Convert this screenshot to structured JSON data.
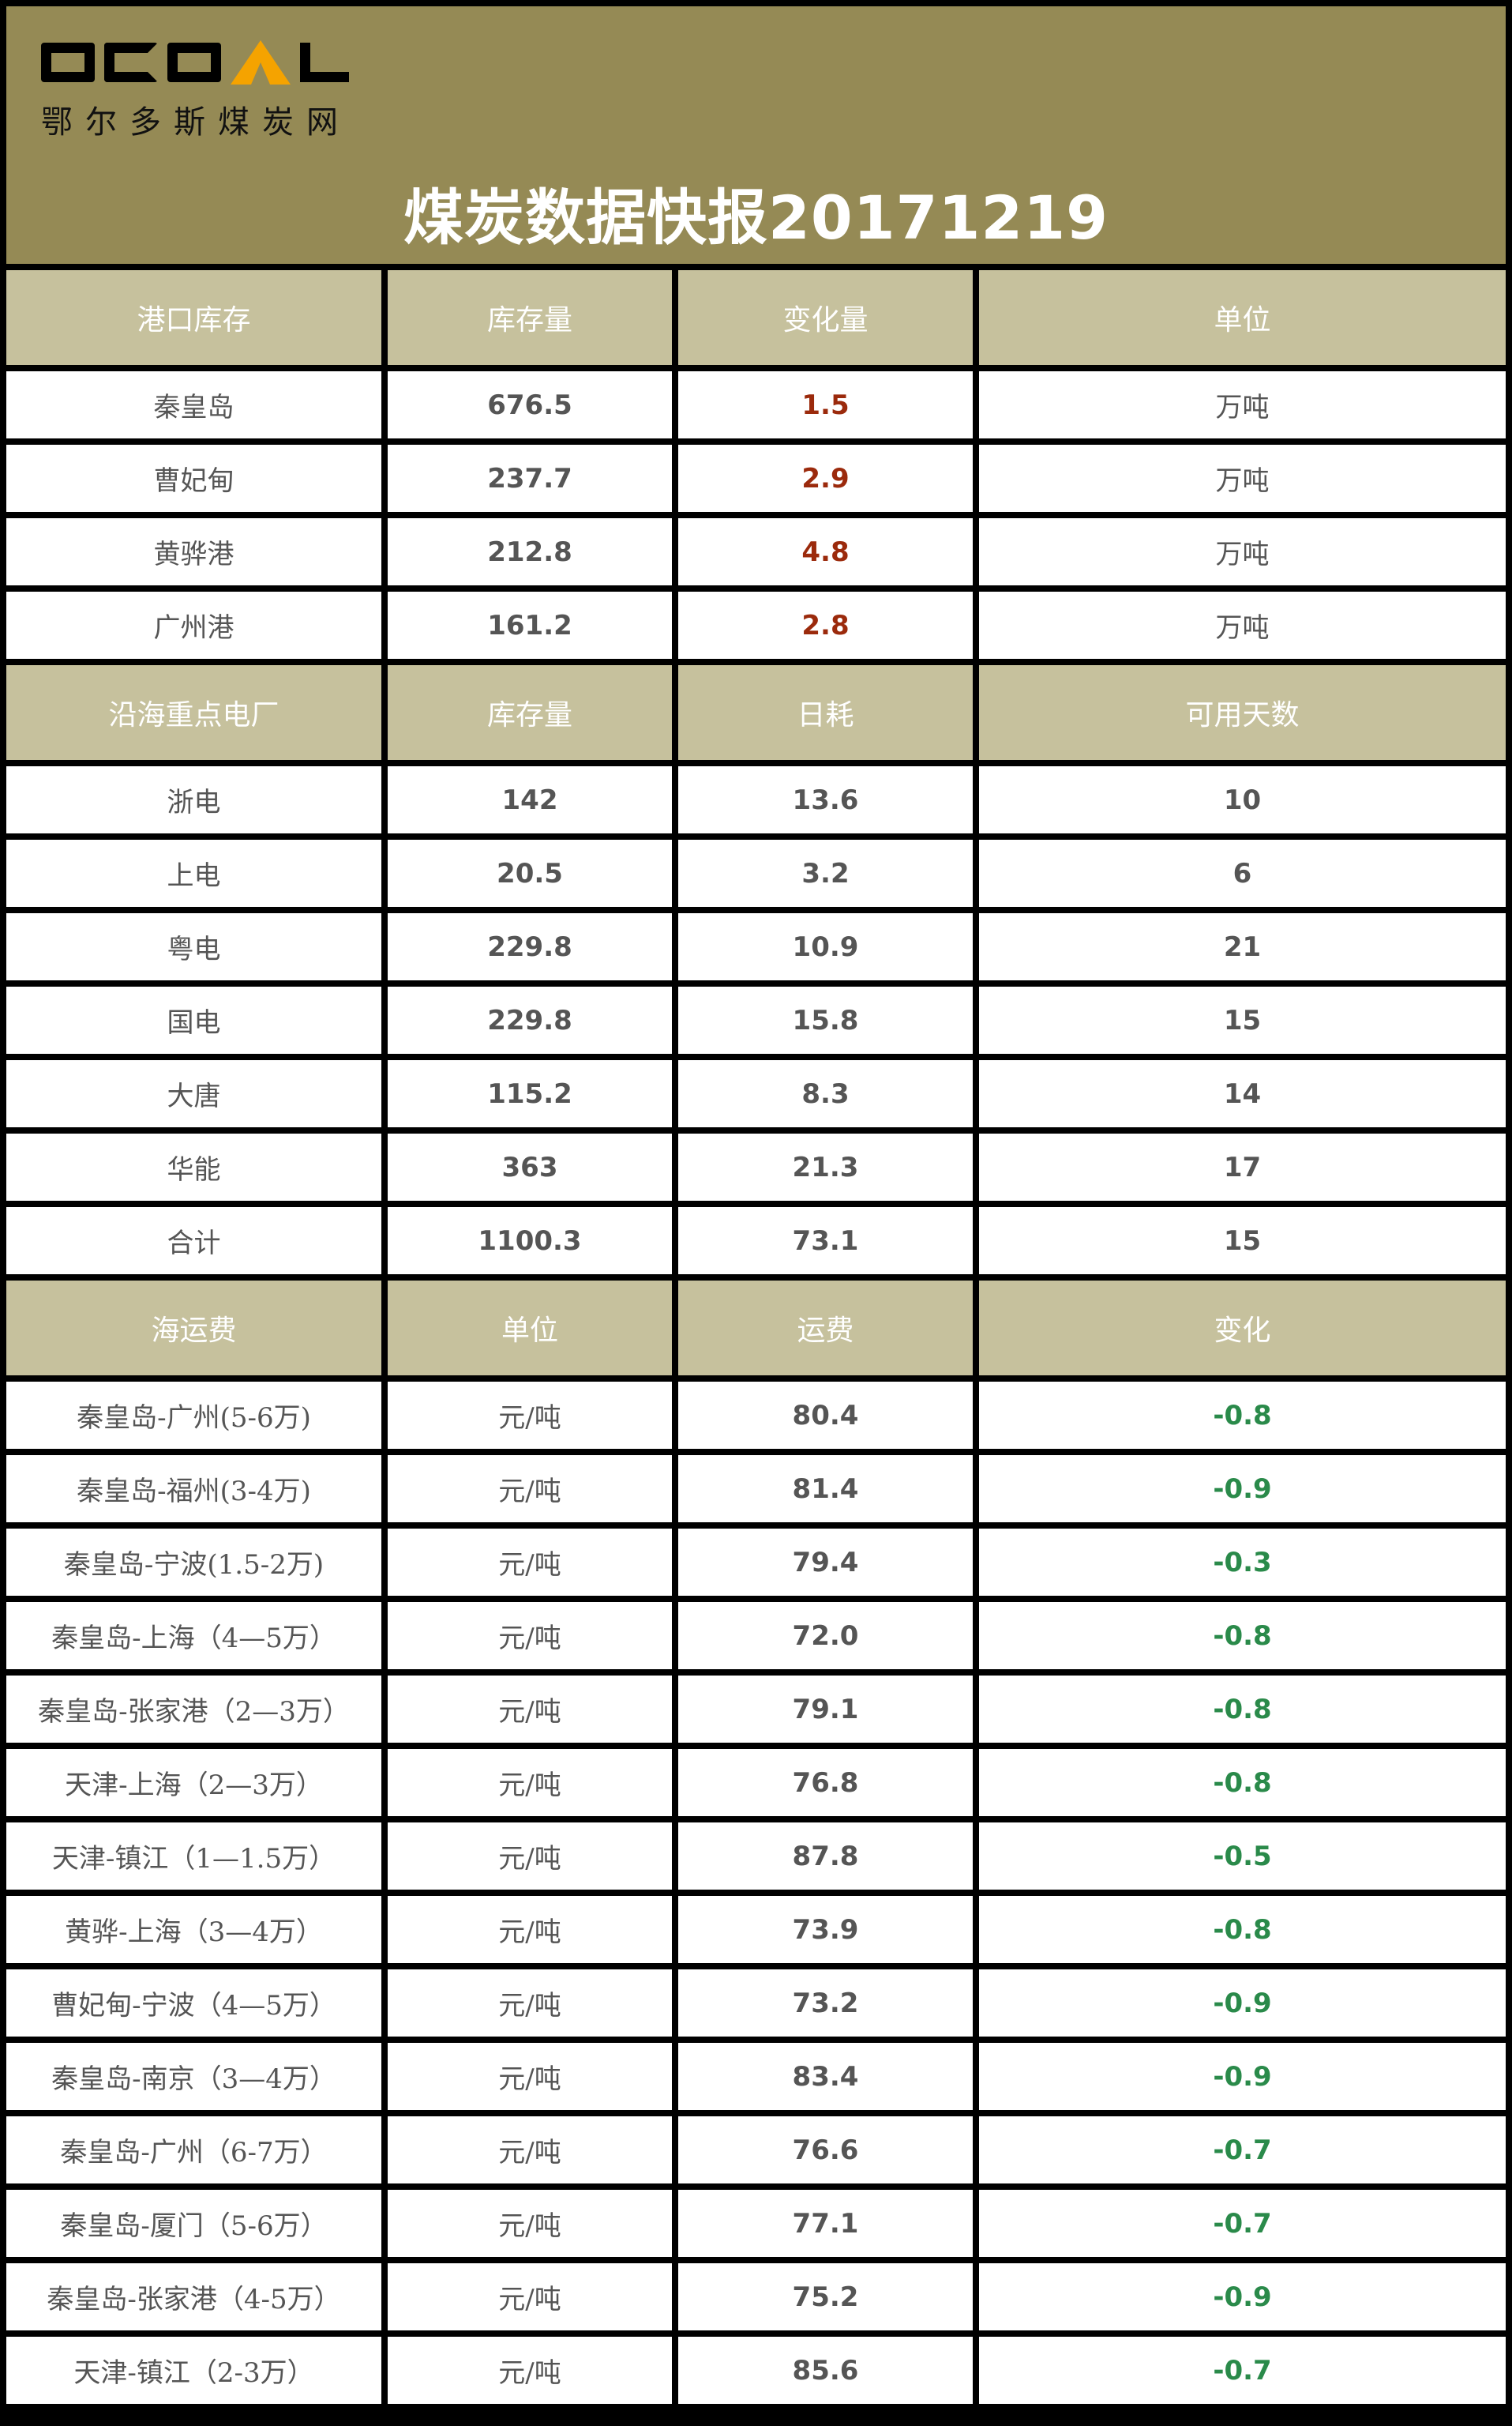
{
  "header": {
    "logo_text": "OCOAL",
    "logo_subtitle": "鄂尔多斯煤炭网",
    "title": "煤炭数据快报20171219",
    "colors": {
      "background": "#958a55",
      "accent": "#f5a300"
    }
  },
  "port_inventory": {
    "headers": [
      "港口库存",
      "库存量",
      "变化量",
      "单位"
    ],
    "rows": [
      {
        "name": "秦皇岛",
        "stock": "676.5",
        "change": "1.5",
        "unit": "万吨"
      },
      {
        "name": "曹妃甸",
        "stock": "237.7",
        "change": "2.9",
        "unit": "万吨"
      },
      {
        "name": "黄骅港",
        "stock": "212.8",
        "change": "4.8",
        "unit": "万吨"
      },
      {
        "name": "广州港",
        "stock": "161.2",
        "change": "2.8",
        "unit": "万吨"
      }
    ]
  },
  "power_plants": {
    "headers": [
      "沿海重点电厂",
      "库存量",
      "日耗",
      "可用天数"
    ],
    "rows": [
      {
        "name": "浙电",
        "stock": "142",
        "daily": "13.6",
        "days": "10"
      },
      {
        "name": "上电",
        "stock": "20.5",
        "daily": "3.2",
        "days": "6"
      },
      {
        "name": "粤电",
        "stock": "229.8",
        "daily": "10.9",
        "days": "21"
      },
      {
        "name": "国电",
        "stock": "229.8",
        "daily": "15.8",
        "days": "15"
      },
      {
        "name": "大唐",
        "stock": "115.2",
        "daily": "8.3",
        "days": "14"
      },
      {
        "name": "华能",
        "stock": "363",
        "daily": "21.3",
        "days": "17"
      },
      {
        "name": "合计",
        "stock": "1100.3",
        "daily": "73.1",
        "days": "15"
      }
    ]
  },
  "freight": {
    "headers": [
      "海运费",
      "单位",
      "运费",
      "变化"
    ],
    "rows": [
      {
        "route": "秦皇岛-广州(5-6万)",
        "unit": "元/吨",
        "price": "80.4",
        "change": "-0.8"
      },
      {
        "route": "秦皇岛-福州(3-4万)",
        "unit": "元/吨",
        "price": "81.4",
        "change": "-0.9"
      },
      {
        "route": "秦皇岛-宁波(1.5-2万)",
        "unit": "元/吨",
        "price": "79.4",
        "change": "-0.3"
      },
      {
        "route": "秦皇岛-上海（4—5万）",
        "unit": "元/吨",
        "price": "72.0",
        "change": "-0.8"
      },
      {
        "route": "秦皇岛-张家港（2—3万）",
        "unit": "元/吨",
        "price": "79.1",
        "change": "-0.8"
      },
      {
        "route": "天津-上海（2—3万）",
        "unit": "元/吨",
        "price": "76.8",
        "change": "-0.8"
      },
      {
        "route": "天津-镇江（1—1.5万）",
        "unit": "元/吨",
        "price": "87.8",
        "change": "-0.5"
      },
      {
        "route": "黄骅-上海（3—4万）",
        "unit": "元/吨",
        "price": "73.9",
        "change": "-0.8"
      },
      {
        "route": "曹妃甸-宁波（4—5万）",
        "unit": "元/吨",
        "price": "73.2",
        "change": "-0.9"
      },
      {
        "route": "秦皇岛-南京（3—4万）",
        "unit": "元/吨",
        "price": "83.4",
        "change": "-0.9"
      },
      {
        "route": "秦皇岛-广州（6-7万）",
        "unit": "元/吨",
        "price": "76.6",
        "change": "-0.7"
      },
      {
        "route": "秦皇岛-厦门（5-6万）",
        "unit": "元/吨",
        "price": "77.1",
        "change": "-0.7"
      },
      {
        "route": "秦皇岛-张家港（4-5万）",
        "unit": "元/吨",
        "price": "75.2",
        "change": "-0.9"
      },
      {
        "route": "天津-镇江（2-3万）",
        "unit": "元/吨",
        "price": "85.6",
        "change": "-0.7"
      }
    ]
  }
}
